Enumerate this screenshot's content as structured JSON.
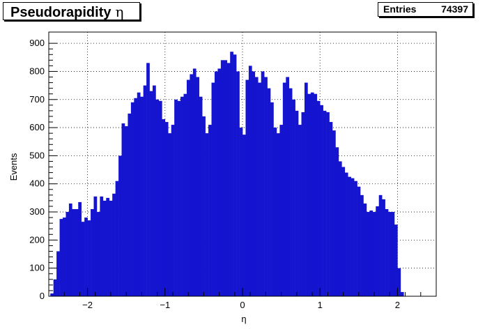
{
  "title": {
    "text": "Pseudorapidity",
    "symbol": "η"
  },
  "stats": {
    "label": "Entries",
    "value": "74397"
  },
  "chart_data": {
    "type": "bar",
    "title": "Pseudorapidity η",
    "xlabel": "η",
    "ylabel": "Events",
    "xlim": [
      -2.5,
      2.5
    ],
    "ylim": [
      0,
      940
    ],
    "xticks": [
      "−2",
      "−1",
      "0",
      "1",
      "2"
    ],
    "yticks": [
      "0",
      "100",
      "200",
      "300",
      "400",
      "500",
      "600",
      "700",
      "800",
      "900"
    ],
    "grid": true,
    "bar_color": "#1515d0",
    "bin_width": 0.04,
    "x_start": -2.48,
    "values": [
      10,
      60,
      160,
      275,
      280,
      300,
      330,
      310,
      310,
      335,
      265,
      280,
      270,
      310,
      355,
      300,
      355,
      340,
      350,
      340,
      365,
      410,
      500,
      615,
      605,
      650,
      690,
      705,
      725,
      710,
      750,
      830,
      730,
      750,
      700,
      695,
      630,
      620,
      580,
      610,
      700,
      695,
      710,
      720,
      770,
      790,
      810,
      780,
      710,
      640,
      580,
      610,
      760,
      800,
      810,
      840,
      840,
      830,
      870,
      860,
      800,
      600,
      575,
      770,
      820,
      800,
      780,
      760,
      800,
      780,
      740,
      690,
      600,
      580,
      610,
      760,
      780,
      740,
      700,
      660,
      610,
      655,
      760,
      720,
      725,
      720,
      695,
      680,
      660,
      655,
      620,
      590,
      530,
      480,
      460,
      440,
      425,
      420,
      410,
      390,
      360,
      330,
      300,
      305,
      300,
      320,
      360,
      345,
      310,
      300,
      300,
      255,
      100,
      15
    ]
  }
}
